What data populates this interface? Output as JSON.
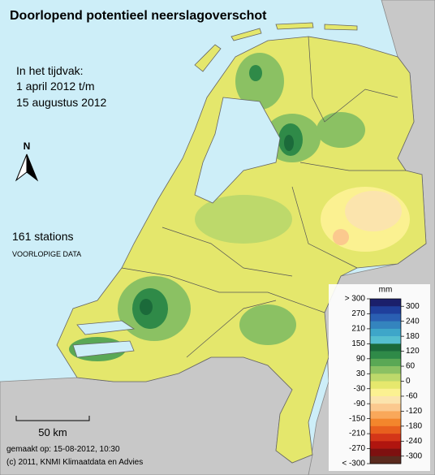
{
  "title": "Doorlopend potentieel neerslagoverschot",
  "period": {
    "label": "In het tijdvak:",
    "start": "1 april 2012 t/m",
    "end": "15 augustus 2012"
  },
  "north": "N",
  "stations": "161 stations",
  "status": "VOORLOPIGE DATA",
  "scale": "50 km",
  "footer": {
    "made": "gemaakt op: 15-08-2012, 10:30",
    "copyright": "(c) 2011, KNMI Klimaatdata en Advies"
  },
  "legend": {
    "unit": "mm",
    "ticks": [
      "> 300",
      300,
      270,
      240,
      210,
      180,
      150,
      120,
      90,
      60,
      30,
      0,
      -30,
      -60,
      -90,
      -120,
      -150,
      -180,
      -210,
      -240,
      -270,
      -300,
      "< -300"
    ],
    "colors": [
      "#1b1f6b",
      "#1f3f9c",
      "#2a5fb3",
      "#3484be",
      "#3ea6c9",
      "#55bfcf",
      "#1b6a3a",
      "#2f8a48",
      "#5aa855",
      "#8bc163",
      "#bdd96b",
      "#e6e86d",
      "#fbf191",
      "#fbe4ad",
      "#fbc98e",
      "#f9a85a",
      "#f3862c",
      "#e8601e",
      "#d43618",
      "#b0150f",
      "#7e1010",
      "#5a2a1e"
    ]
  }
}
